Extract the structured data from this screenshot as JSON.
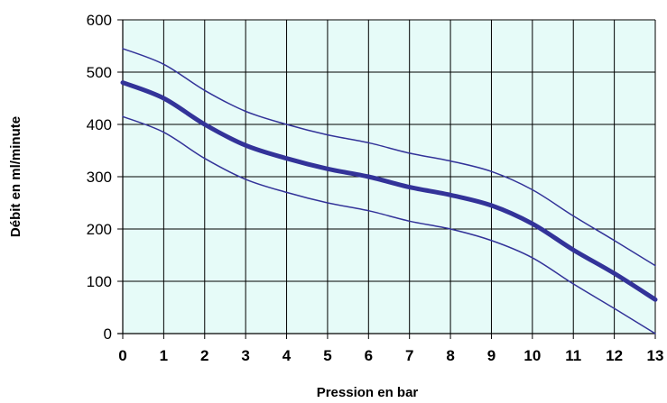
{
  "chart_data": {
    "type": "line",
    "title": "",
    "xlabel": "Pression en bar",
    "ylabel": "Débit en ml/minute",
    "xlim": [
      0,
      13
    ],
    "ylim": [
      0,
      600
    ],
    "x_ticks": [
      "0",
      "1",
      "2",
      "3",
      "4",
      "5",
      "6",
      "7",
      "8",
      "9",
      "10",
      "11",
      "12",
      "13"
    ],
    "y_ticks": [
      "0",
      "100",
      "200",
      "300",
      "400",
      "500",
      "600"
    ],
    "grid": true,
    "legend": "none",
    "colors": {
      "line": "#333399",
      "plot_bg": "#e6fbf8",
      "grid": "#000000"
    },
    "x": [
      0,
      1,
      2,
      3,
      4,
      5,
      6,
      7,
      8,
      9,
      10,
      11,
      12,
      13
    ],
    "series": [
      {
        "values": [
          545,
          515,
          465,
          425,
          400,
          380,
          365,
          345,
          330,
          310,
          275,
          225,
          178,
          130
        ],
        "style": "thin"
      },
      {
        "values": [
          480,
          450,
          400,
          360,
          335,
          315,
          300,
          280,
          265,
          245,
          210,
          160,
          115,
          65
        ],
        "style": "thick"
      },
      {
        "values": [
          415,
          385,
          335,
          295,
          270,
          250,
          235,
          215,
          200,
          178,
          145,
          95,
          48,
          0
        ],
        "style": "thin"
      }
    ]
  }
}
